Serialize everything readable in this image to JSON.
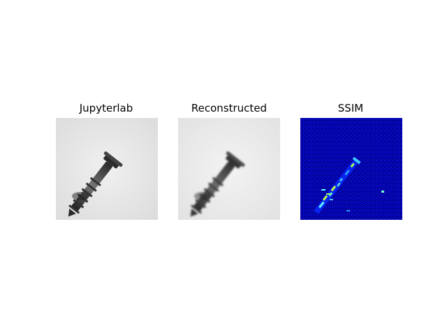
{
  "figure": {
    "panels": [
      {
        "title": "Jupyterlab",
        "image": "screw-original-grayscale"
      },
      {
        "title": "Reconstructed",
        "image": "screw-reconstructed-grayscale"
      },
      {
        "title": "SSIM",
        "image": "ssim-map-jet-colormap"
      }
    ]
  }
}
